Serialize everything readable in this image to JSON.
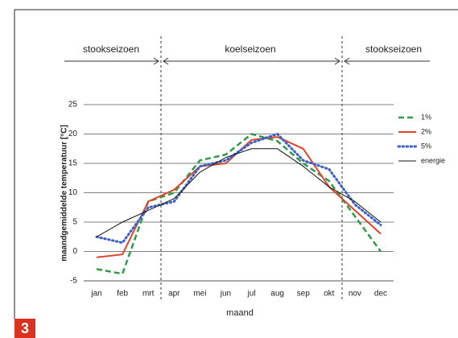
{
  "figure_number": "3",
  "chart_data": {
    "type": "line",
    "y_label": "maandgemiddelde temperatuur [°C]",
    "x_label": "maand",
    "annotations": [
      "stookseizoen",
      "koelseizoen",
      "stookseizoen"
    ],
    "categories": [
      "jan",
      "feb",
      "mrt",
      "apr",
      "mei",
      "jun",
      "jul",
      "aug",
      "sep",
      "okt",
      "nov",
      "dec"
    ],
    "ylim": [
      -5,
      25
    ],
    "yticks": [
      -5,
      0,
      5,
      10,
      15,
      20,
      25
    ],
    "grid": true,
    "legend": "right",
    "series": [
      {
        "name": "1%",
        "color": "#2e9a4a",
        "style": "dashed",
        "values": [
          -3,
          -3.8,
          8.5,
          10,
          15.5,
          16.5,
          20,
          18.8,
          15,
          12,
          6,
          0
        ]
      },
      {
        "name": "2%",
        "color": "#e0452c",
        "style": "solid",
        "values": [
          -1,
          -0.5,
          8.5,
          10.5,
          14.5,
          15,
          19,
          19.5,
          17.5,
          11,
          7,
          3
        ]
      },
      {
        "name": "5%",
        "color": "#3a5fc8",
        "style": "dotted",
        "values": [
          2.5,
          1.5,
          7.5,
          8.5,
          14.5,
          15.5,
          18.5,
          20,
          15.5,
          14,
          8,
          4.5
        ]
      },
      {
        "name": "energie",
        "color": "#111111",
        "style": "solid-thin",
        "values": [
          2.5,
          5,
          7,
          9,
          13.5,
          16,
          17.5,
          17.5,
          14.5,
          11,
          8.5,
          5
        ]
      }
    ]
  }
}
